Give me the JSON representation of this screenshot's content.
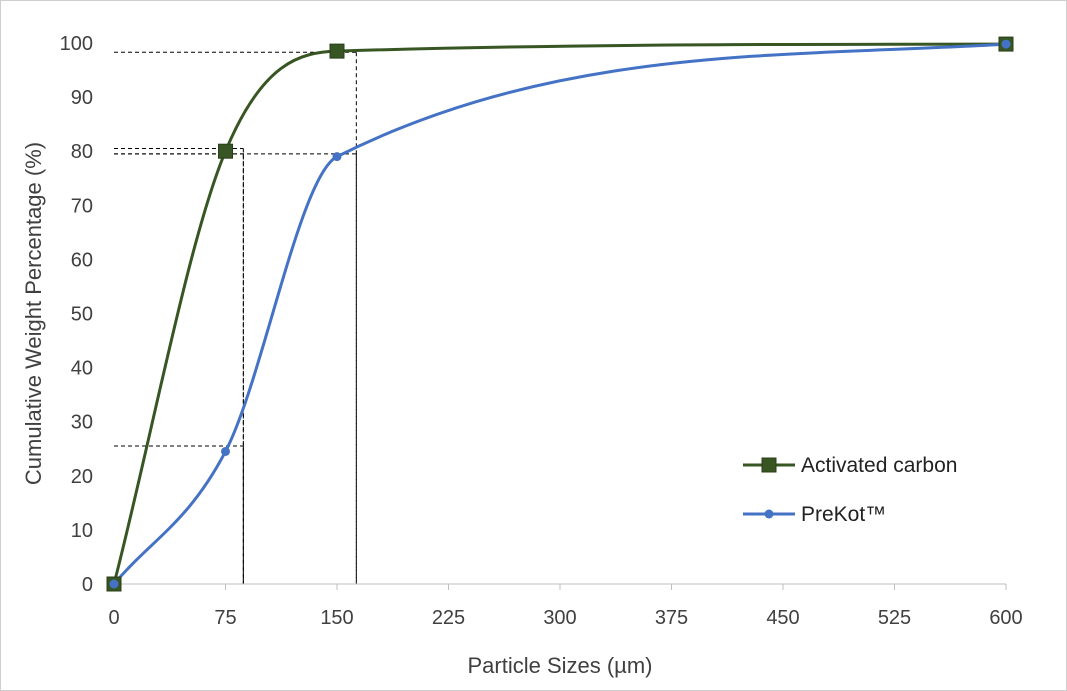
{
  "chart_data": {
    "type": "line",
    "title": "",
    "xlabel": "Particle Sizes (µm)",
    "ylabel": "Cumulative Weight Percentage (%)",
    "x_ticks": [
      0,
      75,
      150,
      225,
      300,
      375,
      450,
      525,
      600
    ],
    "y_ticks": [
      0,
      10,
      20,
      30,
      40,
      50,
      60,
      70,
      80,
      90,
      100
    ],
    "xlim": [
      0,
      600
    ],
    "ylim": [
      0,
      100
    ],
    "grid": false,
    "legend_position": "bottom-right",
    "smooth": true,
    "series": [
      {
        "name": "Activated carbon",
        "marker": "square",
        "color": "#375623",
        "x": [
          0,
          75,
          150,
          600
        ],
        "y": [
          0,
          80,
          98.5,
          99.8
        ]
      },
      {
        "name": "PreKot™",
        "marker": "circle",
        "color": "#4472C4",
        "x": [
          0,
          75,
          150,
          600
        ],
        "y": [
          0,
          24.5,
          79,
          99.8
        ]
      }
    ],
    "reference_lines": [
      {
        "x": 87,
        "y": 80.5
      },
      {
        "x": 87,
        "y": 79.5
      },
      {
        "x": 87,
        "y": 25.5
      },
      {
        "x": 163,
        "y": 98.3
      },
      {
        "x": 163,
        "y": 79.5
      }
    ]
  }
}
